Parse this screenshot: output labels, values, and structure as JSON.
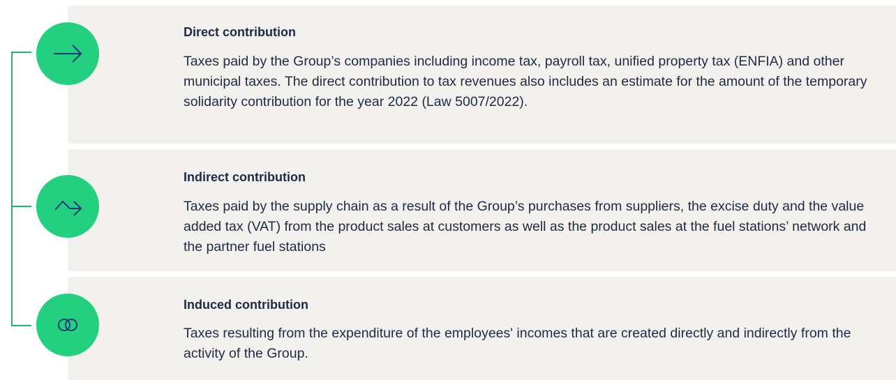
{
  "items": [
    {
      "title": "Direct contribution",
      "body": "Taxes paid by the Group’s companies including income tax, payroll tax, unified property tax (ENFIA) and other municipal taxes. The direct contribution to tax revenues also includes an estimate for the amount of the temporary solidarity contribution for the year 2022 (Law 5007/2022)."
    },
    {
      "title": "Indirect contribution",
      "body": "Taxes paid by the supply chain as a result of the Group’s purchases from suppliers, the excise duty and the value added tax (VAT) from the product sales at customers as well as the product sales at the fuel stations’ network and the partner fuel stations"
    },
    {
      "title": "Induced contribution",
      "body": "Taxes resulting from the expenditure of the employees' incomes that are created directly and indirectly from the activity of the Group."
    }
  ]
}
